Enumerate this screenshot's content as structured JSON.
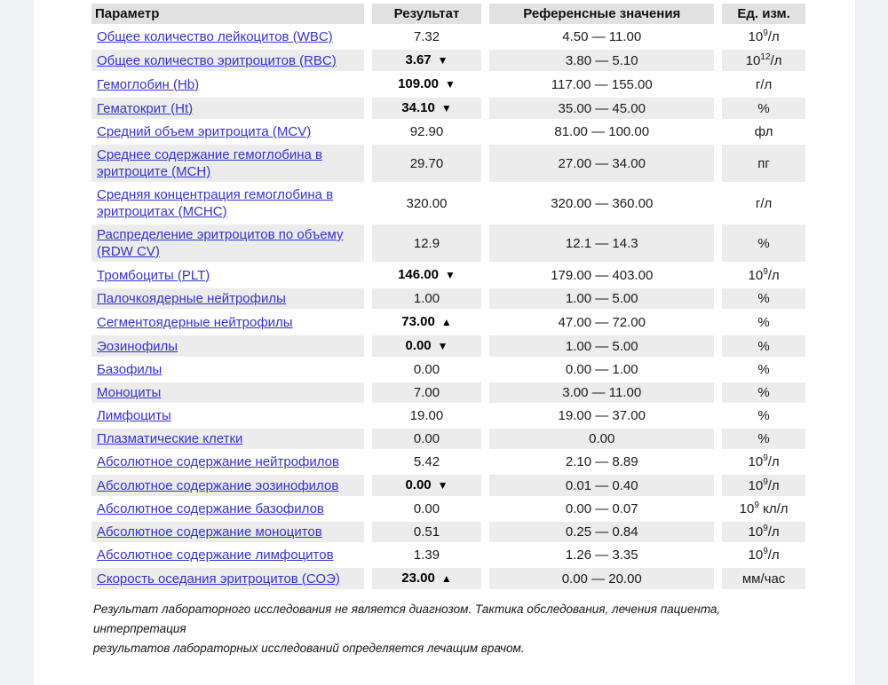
{
  "page": {
    "background": "#ffffff",
    "side_strip_color": "#f0f1f4"
  },
  "table": {
    "headers": {
      "parameter": "Параметр",
      "result": "Результат",
      "reference": "Референсные значения",
      "unit": "Ед. изм."
    },
    "colors": {
      "header_bg": "#e1e1e1",
      "stripe_bg": "#ececec",
      "link": "#3432c8"
    },
    "rows": [
      {
        "param": "Общее количество лейкоцитов (WBC)",
        "result": "7.32",
        "flag": null,
        "range": "4.50 — 11.00",
        "unit": "10^9/л"
      },
      {
        "param": "Общее количество эритроцитов (RBC)",
        "result": "3.67",
        "flag": "down",
        "range": "3.80 — 5.10",
        "unit": "10^12/л"
      },
      {
        "param": "Гемоглобин (Hb)",
        "result": "109.00",
        "flag": "down",
        "range": "117.00 — 155.00",
        "unit": "г/л"
      },
      {
        "param": "Гематокрит (Ht)",
        "result": "34.10",
        "flag": "down",
        "range": "35.00 — 45.00",
        "unit": "%"
      },
      {
        "param": "Средний объем эритроцита (MCV)",
        "result": "92.90",
        "flag": null,
        "range": "81.00 — 100.00",
        "unit": "фл"
      },
      {
        "param": "Среднее содержание гемоглобина в эритроците (MCH)",
        "result": "29.70",
        "flag": null,
        "range": "27.00 — 34.00",
        "unit": "пг"
      },
      {
        "param": "Средняя концентрация гемоглобина в эритроцитах (MCHC)",
        "result": "320.00",
        "flag": null,
        "range": "320.00 — 360.00",
        "unit": "г/л"
      },
      {
        "param": "Распределение эритроцитов по объему (RDW CV)",
        "result": "12.9",
        "flag": null,
        "range": "12.1 — 14.3",
        "unit": "%"
      },
      {
        "param": "Тромбоциты (PLT)",
        "result": "146.00",
        "flag": "down",
        "range": "179.00 — 403.00",
        "unit": "10^9/л"
      },
      {
        "param": "Палочкоядерные нейтрофилы",
        "result": "1.00",
        "flag": null,
        "range": "1.00 — 5.00",
        "unit": "%"
      },
      {
        "param": "Сегментоядерные нейтрофилы",
        "result": "73.00",
        "flag": "up",
        "range": "47.00 — 72.00",
        "unit": "%"
      },
      {
        "param": "Эозинофилы",
        "result": "0.00",
        "flag": "down",
        "range": "1.00 — 5.00",
        "unit": "%"
      },
      {
        "param": "Базофилы",
        "result": "0.00",
        "flag": null,
        "range": "0.00 — 1.00",
        "unit": "%"
      },
      {
        "param": "Моноциты",
        "result": "7.00",
        "flag": null,
        "range": "3.00 — 11.00",
        "unit": "%"
      },
      {
        "param": "Лимфоциты",
        "result": "19.00",
        "flag": null,
        "range": "19.00 — 37.00",
        "unit": "%"
      },
      {
        "param": "Плазматические клетки",
        "result": "0.00",
        "flag": null,
        "range": "0.00",
        "unit": "%"
      },
      {
        "param": "Абсолютное содержание нейтрофилов",
        "result": "5.42",
        "flag": null,
        "range": "2.10 — 8.89",
        "unit": "10^9/л"
      },
      {
        "param": "Абсолютное содержание эозинофилов",
        "result": "0.00",
        "flag": "down",
        "range": "0.01 — 0.40",
        "unit": "10^9/л"
      },
      {
        "param": "Абсолютное содержание базофилов",
        "result": "0.00",
        "flag": null,
        "range": "0.00 — 0.07",
        "unit": "10^9 кл/л"
      },
      {
        "param": "Абсолютное содержание моноцитов",
        "result": "0.51",
        "flag": null,
        "range": "0.25 — 0.84",
        "unit": "10^9/л"
      },
      {
        "param": "Абсолютное содержание лимфоцитов",
        "result": "1.39",
        "flag": null,
        "range": "1.26 — 3.35",
        "unit": "10^9/л"
      },
      {
        "param": "Скорость оседания эритроцитов (СОЭ)",
        "result": "23.00",
        "flag": "up",
        "range": "0.00 — 20.00",
        "unit": "мм/час"
      }
    ]
  },
  "footnote": {
    "line1": "Результат лабораторного исследования не является диагнозом. Тактика обследования, лечения пациента, интерпретация",
    "line2": "результатов лабораторных исследований определяется лечащим врачом."
  }
}
